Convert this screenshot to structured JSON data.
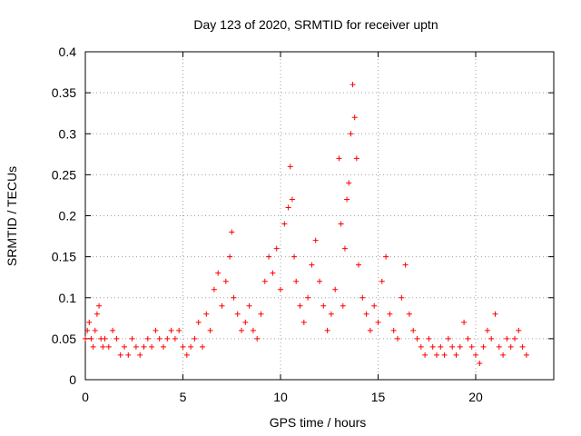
{
  "chart_data": {
    "type": "scatter",
    "title": "Day 123 of 2020, SRMTID for receiver uptn",
    "xlabel": "GPS time / hours",
    "ylabel": "SRMTID / TECUs",
    "xlim": [
      0,
      24
    ],
    "ylim": [
      0,
      0.4
    ],
    "xticks": [
      0,
      5,
      10,
      15,
      20
    ],
    "xtick_labels": [
      "0",
      "5",
      "10",
      "15",
      "20"
    ],
    "yticks": [
      0,
      0.05,
      0.1,
      0.15,
      0.2,
      0.25,
      0.3,
      0.35,
      0.4
    ],
    "ytick_labels": [
      "0",
      "0.05",
      "0.1",
      "0.15",
      "0.2",
      "0.25",
      "0.3",
      "0.35",
      "0.4"
    ],
    "grid": true,
    "marker": "plus",
    "color": "#ff0000",
    "series": [
      {
        "name": "SRMTID",
        "x": [
          0.0,
          0.1,
          0.2,
          0.3,
          0.4,
          0.5,
          0.6,
          0.7,
          0.8,
          0.9,
          1.0,
          1.2,
          1.4,
          1.6,
          1.8,
          2.0,
          2.2,
          2.4,
          2.6,
          2.8,
          3.0,
          3.2,
          3.4,
          3.6,
          3.8,
          4.0,
          4.2,
          4.4,
          4.6,
          4.8,
          5.0,
          5.2,
          5.4,
          5.6,
          5.8,
          6.0,
          6.2,
          6.4,
          6.6,
          6.8,
          7.0,
          7.2,
          7.4,
          7.5,
          7.6,
          7.8,
          8.0,
          8.2,
          8.4,
          8.6,
          8.8,
          9.0,
          9.2,
          9.4,
          9.6,
          9.8,
          10.0,
          10.2,
          10.4,
          10.5,
          10.6,
          10.7,
          10.8,
          11.0,
          11.2,
          11.4,
          11.6,
          11.8,
          12.0,
          12.2,
          12.4,
          12.6,
          12.8,
          13.0,
          13.1,
          13.2,
          13.3,
          13.4,
          13.5,
          13.6,
          13.7,
          13.8,
          13.9,
          14.0,
          14.2,
          14.4,
          14.6,
          14.8,
          15.0,
          15.2,
          15.4,
          15.6,
          15.8,
          16.0,
          16.2,
          16.4,
          16.6,
          16.8,
          17.0,
          17.2,
          17.4,
          17.6,
          17.8,
          18.0,
          18.2,
          18.4,
          18.6,
          18.8,
          19.0,
          19.2,
          19.4,
          19.6,
          19.8,
          20.0,
          20.2,
          20.4,
          20.6,
          20.8,
          21.0,
          21.2,
          21.4,
          21.6,
          21.8,
          22.0,
          22.2,
          22.4,
          22.6
        ],
        "values": [
          0.05,
          0.06,
          0.07,
          0.05,
          0.04,
          0.06,
          0.08,
          0.09,
          0.05,
          0.04,
          0.05,
          0.04,
          0.06,
          0.05,
          0.03,
          0.04,
          0.03,
          0.05,
          0.04,
          0.03,
          0.04,
          0.05,
          0.04,
          0.06,
          0.05,
          0.04,
          0.05,
          0.06,
          0.05,
          0.06,
          0.04,
          0.03,
          0.04,
          0.05,
          0.07,
          0.04,
          0.08,
          0.06,
          0.11,
          0.13,
          0.09,
          0.12,
          0.15,
          0.18,
          0.1,
          0.08,
          0.06,
          0.07,
          0.09,
          0.06,
          0.05,
          0.08,
          0.12,
          0.15,
          0.13,
          0.16,
          0.11,
          0.19,
          0.21,
          0.26,
          0.22,
          0.15,
          0.12,
          0.09,
          0.07,
          0.1,
          0.14,
          0.17,
          0.12,
          0.09,
          0.06,
          0.08,
          0.11,
          0.27,
          0.19,
          0.09,
          0.16,
          0.22,
          0.24,
          0.3,
          0.36,
          0.32,
          0.27,
          0.14,
          0.1,
          0.08,
          0.06,
          0.09,
          0.07,
          0.12,
          0.15,
          0.08,
          0.06,
          0.05,
          0.1,
          0.14,
          0.08,
          0.06,
          0.05,
          0.04,
          0.03,
          0.05,
          0.04,
          0.03,
          0.04,
          0.03,
          0.05,
          0.04,
          0.03,
          0.04,
          0.07,
          0.05,
          0.04,
          0.03,
          0.02,
          0.04,
          0.06,
          0.05,
          0.08,
          0.04,
          0.03,
          0.05,
          0.04,
          0.05,
          0.06,
          0.04,
          0.03
        ]
      }
    ]
  }
}
